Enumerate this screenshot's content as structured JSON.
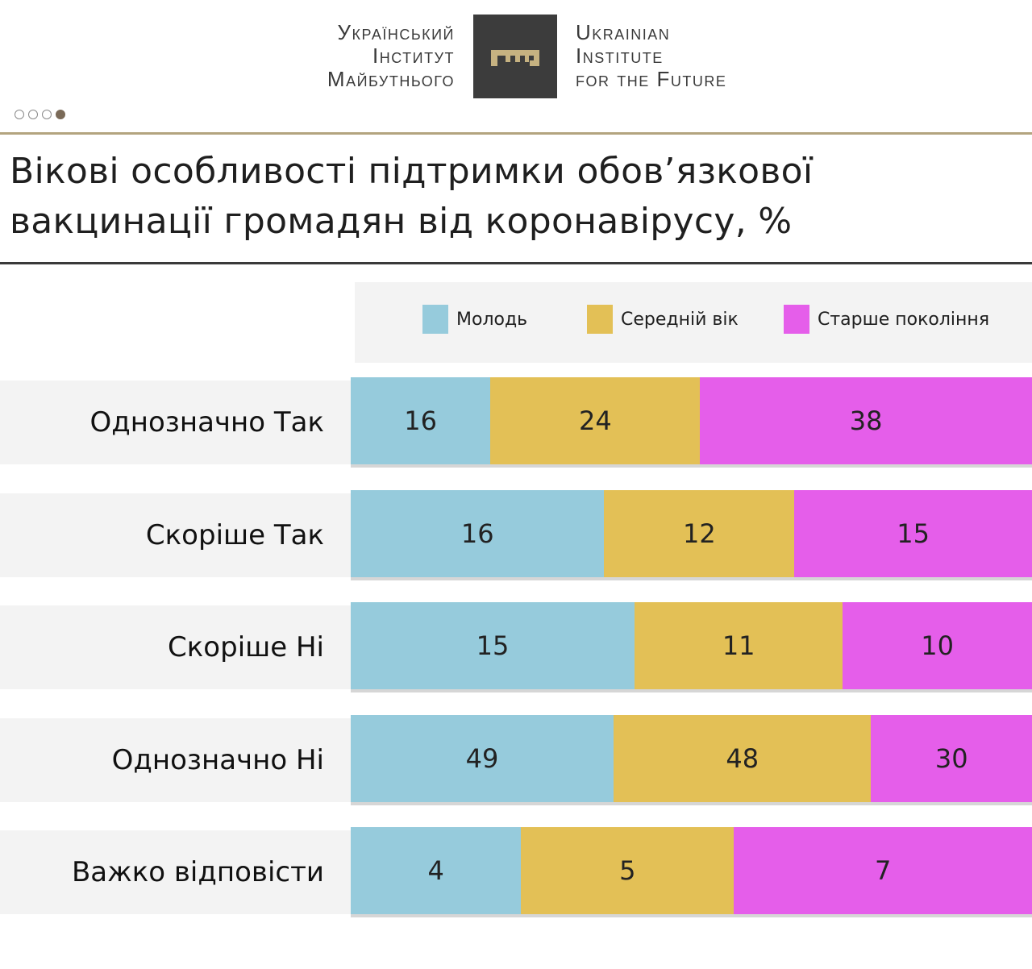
{
  "header": {
    "logo_ua": [
      "Український",
      "Інститут",
      "Майбутнього"
    ],
    "logo_en": [
      "Ukrainian",
      "Institute",
      "for the Future"
    ],
    "logo_icon": "key-icon",
    "pager": {
      "count": 4,
      "active_index": 3
    }
  },
  "colors": {
    "youth": "#96cbdc",
    "middle": "#e3c056",
    "older": "#e55eea",
    "accent_rule": "#b3a47f"
  },
  "chart_data": {
    "type": "bar",
    "stacked": true,
    "orientation": "horizontal",
    "title": "Вікові особливості підтримки обов’язкової вакцинації громадян від коронавірусу, %",
    "categories": [
      "Однозначно Так",
      "Скоріше Так",
      "Скоріше Ні",
      "Однозначно Ні",
      "Важко відповісти"
    ],
    "series": [
      {
        "name": "Молодь",
        "values": [
          16,
          16,
          15,
          49,
          4
        ]
      },
      {
        "name": "Середній вік",
        "values": [
          24,
          12,
          11,
          48,
          5
        ]
      },
      {
        "name": "Старше покоління",
        "values": [
          38,
          15,
          10,
          30,
          7
        ]
      }
    ],
    "legend_position": "top",
    "data_labels": true
  }
}
